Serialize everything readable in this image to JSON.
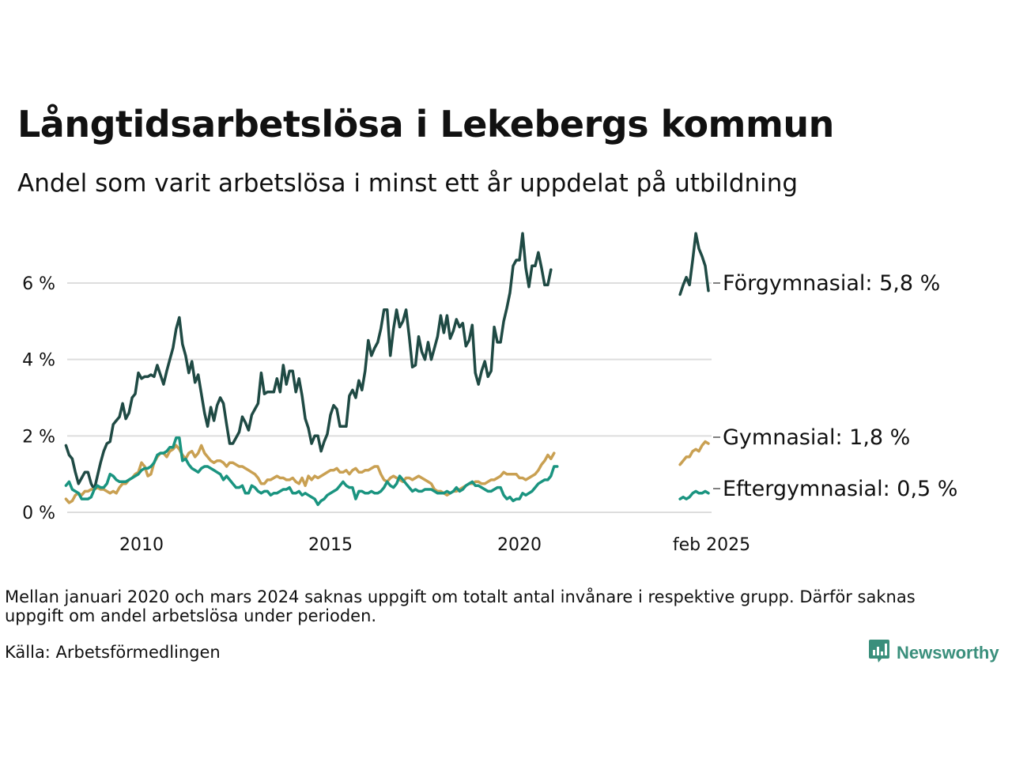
{
  "header": {
    "title": "Långtidsarbetslösa i Lekebergs kommun",
    "subtitle": "Andel som varit arbetslösa i minst ett år uppdelat på utbildning"
  },
  "footer": {
    "note": "Mellan januari 2020 och mars 2024 saknas uppgift om totalt antal invånare i respektive grupp. Därför saknas uppgift om andel arbetslösa under perioden.",
    "source": "Källa: Arbetsförmedlingen",
    "brand": "Newsworthy",
    "brand_icon": "bar-chart-speech-icon"
  },
  "colors": {
    "forgymnasial": "#1f4a44",
    "gymnasial": "#c9a052",
    "eftergymnasial": "#1a9480",
    "grid": "#dddddd",
    "brand": "#3a8f7c"
  },
  "chart_data": {
    "type": "line",
    "y_unit": "%",
    "ylim": [
      0,
      7.5
    ],
    "y_ticks": [
      {
        "value": 0,
        "label": "0 %"
      },
      {
        "value": 2,
        "label": "2 %"
      },
      {
        "value": 4,
        "label": "4 %"
      },
      {
        "value": 6,
        "label": "6 %"
      }
    ],
    "x_ticks": [
      {
        "value": "2010",
        "label": "2010"
      },
      {
        "value": "2015",
        "label": "2015"
      },
      {
        "value": "2020",
        "label": "2020"
      },
      {
        "value": "2025-02",
        "label": "feb 2025"
      }
    ],
    "xlim": [
      "2008-01",
      "2025-04"
    ],
    "grid": true,
    "legend": "end-labels right",
    "series": [
      {
        "name": "Förgymnasial",
        "end_label": "Förgymnasial: 5,8 %",
        "color_key": "forgymnasial",
        "segments": [
          {
            "start": "2008-01",
            "values": [
              1.75,
              1.5,
              1.4,
              1.05,
              0.75,
              0.9,
              1.05,
              1.05,
              0.75,
              0.6,
              0.95,
              1.3,
              1.6,
              1.8,
              1.85,
              2.3,
              2.4,
              2.5,
              2.85,
              2.45,
              2.6,
              3.0,
              3.1,
              3.65,
              3.5,
              3.55,
              3.55,
              3.6,
              3.55,
              3.85,
              3.6,
              3.35,
              3.7,
              4.0,
              4.3,
              4.8,
              5.1,
              4.4,
              4.1,
              3.65,
              3.95,
              3.4,
              3.6,
              3.1,
              2.6,
              2.25,
              2.75,
              2.4,
              2.8,
              3.0,
              2.85,
              2.3,
              1.8,
              1.8,
              1.95,
              2.1,
              2.5,
              2.35,
              2.15,
              2.55,
              2.7,
              2.85,
              3.65,
              3.1,
              3.15,
              3.15,
              3.15,
              3.5,
              3.15,
              3.85,
              3.35,
              3.7,
              3.7,
              3.15,
              3.5,
              3.05,
              2.45,
              2.2,
              1.8,
              2.0,
              2.0,
              1.6,
              1.85,
              2.05,
              2.55,
              2.8,
              2.7,
              2.25,
              2.25,
              2.25,
              3.05,
              3.2,
              3.0,
              3.45,
              3.2,
              3.7,
              4.5,
              4.1,
              4.3,
              4.45,
              4.8,
              5.3,
              5.3,
              4.1,
              4.8,
              5.3,
              4.85,
              5.0,
              5.3,
              4.6,
              3.8,
              3.85,
              4.6,
              4.2,
              4.0,
              4.45,
              4.0,
              4.3,
              4.6,
              5.15,
              4.7,
              5.15,
              4.55,
              4.75,
              5.05,
              4.85,
              4.95,
              4.35,
              4.5,
              4.9,
              3.65,
              3.35,
              3.7,
              3.95,
              3.55,
              3.7,
              4.85,
              4.45,
              4.45,
              5.0,
              5.35,
              5.75,
              6.45,
              6.6,
              6.6,
              7.3,
              6.4,
              5.9,
              6.45,
              6.45,
              6.8,
              6.4,
              5.95,
              5.95,
              6.35
            ]
          },
          {
            "start": "2024-04",
            "values": [
              5.7,
              5.95,
              6.15,
              5.95,
              6.6,
              7.3,
              6.9,
              6.7,
              6.45,
              5.8
            ]
          }
        ]
      },
      {
        "name": "Gymnasial",
        "end_label": "Gymnasial: 1,8 %",
        "color_key": "gymnasial",
        "segments": [
          {
            "start": "2008-01",
            "values": [
              0.35,
              0.25,
              0.3,
              0.45,
              0.5,
              0.45,
              0.55,
              0.55,
              0.6,
              0.6,
              0.65,
              0.6,
              0.6,
              0.55,
              0.5,
              0.55,
              0.5,
              0.65,
              0.75,
              0.75,
              0.85,
              0.9,
              1.0,
              1.05,
              1.3,
              1.2,
              0.95,
              1.0,
              1.3,
              1.45,
              1.55,
              1.55,
              1.45,
              1.6,
              1.65,
              1.75,
              1.65,
              1.5,
              1.4,
              1.55,
              1.6,
              1.45,
              1.55,
              1.75,
              1.55,
              1.45,
              1.35,
              1.3,
              1.35,
              1.35,
              1.3,
              1.2,
              1.3,
              1.3,
              1.25,
              1.2,
              1.2,
              1.15,
              1.1,
              1.05,
              1.0,
              0.9,
              0.75,
              0.75,
              0.85,
              0.85,
              0.9,
              0.95,
              0.9,
              0.9,
              0.85,
              0.85,
              0.9,
              0.8,
              0.75,
              0.9,
              0.7,
              0.95,
              0.85,
              0.95,
              0.9,
              0.95,
              1.0,
              1.05,
              1.1,
              1.1,
              1.15,
              1.05,
              1.05,
              1.1,
              1.0,
              1.1,
              1.15,
              1.05,
              1.05,
              1.1,
              1.1,
              1.15,
              1.2,
              1.2,
              1.0,
              0.85,
              0.8,
              0.9,
              0.95,
              0.9,
              0.85,
              0.8,
              0.9,
              0.9,
              0.85,
              0.9,
              0.95,
              0.9,
              0.85,
              0.8,
              0.75,
              0.6,
              0.55,
              0.55,
              0.5,
              0.45,
              0.5,
              0.55,
              0.55,
              0.6,
              0.65,
              0.7,
              0.75,
              0.75,
              0.8,
              0.8,
              0.75,
              0.75,
              0.8,
              0.85,
              0.85,
              0.9,
              0.95,
              1.05,
              1.0,
              1.0,
              1.0,
              1.0,
              0.9,
              0.9,
              0.85,
              0.9,
              0.95,
              1.0,
              1.1,
              1.25,
              1.35,
              1.5,
              1.4,
              1.55
            ]
          },
          {
            "start": "2024-04",
            "values": [
              1.25,
              1.35,
              1.45,
              1.45,
              1.6,
              1.65,
              1.6,
              1.75,
              1.85,
              1.8
            ]
          }
        ]
      },
      {
        "name": "Eftergymnasial",
        "end_label": "Eftergymnasial: 0,5 %",
        "color_key": "eftergymnasial",
        "segments": [
          {
            "start": "2008-01",
            "values": [
              0.7,
              0.8,
              0.6,
              0.55,
              0.5,
              0.35,
              0.35,
              0.35,
              0.4,
              0.6,
              0.7,
              0.65,
              0.65,
              0.75,
              1.0,
              0.95,
              0.85,
              0.8,
              0.8,
              0.8,
              0.85,
              0.9,
              0.95,
              1.0,
              1.1,
              1.15,
              1.15,
              1.2,
              1.3,
              1.5,
              1.55,
              1.55,
              1.6,
              1.7,
              1.7,
              1.95,
              1.95,
              1.35,
              1.4,
              1.25,
              1.15,
              1.1,
              1.05,
              1.15,
              1.2,
              1.2,
              1.15,
              1.1,
              1.05,
              1.0,
              0.85,
              0.95,
              0.85,
              0.75,
              0.65,
              0.65,
              0.7,
              0.5,
              0.5,
              0.7,
              0.65,
              0.55,
              0.5,
              0.55,
              0.55,
              0.45,
              0.5,
              0.5,
              0.55,
              0.6,
              0.6,
              0.65,
              0.5,
              0.5,
              0.55,
              0.45,
              0.5,
              0.45,
              0.4,
              0.35,
              0.2,
              0.3,
              0.35,
              0.45,
              0.5,
              0.55,
              0.6,
              0.7,
              0.8,
              0.7,
              0.65,
              0.65,
              0.35,
              0.55,
              0.55,
              0.5,
              0.5,
              0.55,
              0.5,
              0.5,
              0.55,
              0.65,
              0.8,
              0.7,
              0.65,
              0.75,
              0.95,
              0.85,
              0.75,
              0.65,
              0.55,
              0.6,
              0.55,
              0.55,
              0.6,
              0.6,
              0.6,
              0.55,
              0.5,
              0.5,
              0.5,
              0.55,
              0.5,
              0.55,
              0.65,
              0.55,
              0.6,
              0.7,
              0.75,
              0.8,
              0.7,
              0.7,
              0.65,
              0.6,
              0.55,
              0.55,
              0.6,
              0.65,
              0.65,
              0.45,
              0.35,
              0.4,
              0.3,
              0.35,
              0.35,
              0.5,
              0.45,
              0.5,
              0.55,
              0.65,
              0.75,
              0.8,
              0.85,
              0.85,
              0.95,
              1.2,
              1.2
            ]
          },
          {
            "start": "2024-04",
            "values": [
              0.35,
              0.4,
              0.35,
              0.4,
              0.5,
              0.55,
              0.5,
              0.5,
              0.55,
              0.5
            ]
          }
        ]
      }
    ]
  }
}
